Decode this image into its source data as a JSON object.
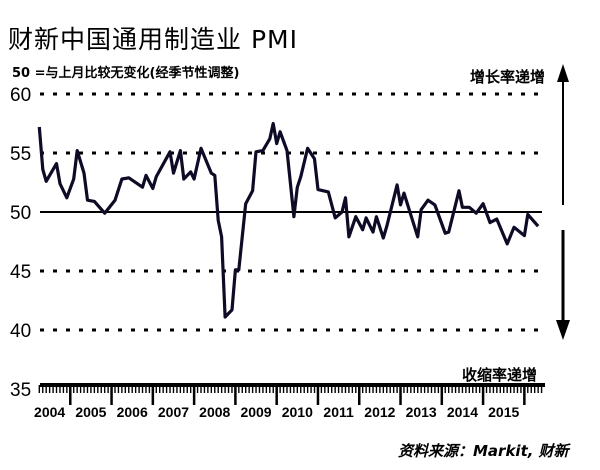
{
  "chart_data": {
    "type": "line",
    "title": "财新中国通用制造业 PMI",
    "subtitle": "50 =与上月比较无变化(经季节性调整)",
    "annotation_up": "增长率递增",
    "annotation_down": "收缩率递增",
    "source": "资料来源：Markit, 财新",
    "xlabel": "",
    "ylabel": "",
    "ylim": [
      35,
      60
    ],
    "yticks": [
      "35",
      "40",
      "45",
      "50",
      "55",
      "60"
    ],
    "xticks": [
      "2004",
      "2005",
      "2006",
      "2007",
      "2008",
      "2009",
      "2010",
      "2011",
      "2012",
      "2013",
      "2014",
      "2015"
    ],
    "x_unit": "months since Jan 2004",
    "reference_line": 50,
    "grid": "dashed horizontal",
    "series": [
      {
        "name": "PMI",
        "color": "#0d0b26",
        "points": [
          [
            3,
            57.2
          ],
          [
            4,
            53.6
          ],
          [
            5,
            52.6
          ],
          [
            8,
            54.1
          ],
          [
            9,
            52.4
          ],
          [
            11,
            51.2
          ],
          [
            13,
            52.8
          ],
          [
            14,
            55.2
          ],
          [
            16,
            53.3
          ],
          [
            17,
            51.0
          ],
          [
            19,
            50.9
          ],
          [
            22,
            49.9
          ],
          [
            25,
            51.0
          ],
          [
            27,
            52.8
          ],
          [
            29,
            52.9
          ],
          [
            33,
            52.1
          ],
          [
            34,
            53.1
          ],
          [
            36,
            52.0
          ],
          [
            37,
            53.0
          ],
          [
            41,
            55.1
          ],
          [
            42,
            53.3
          ],
          [
            44,
            55.2
          ],
          [
            45,
            52.8
          ],
          [
            47,
            53.4
          ],
          [
            48,
            52.8
          ],
          [
            50,
            55.4
          ],
          [
            53,
            53.3
          ],
          [
            54,
            53.1
          ],
          [
            55,
            49.3
          ],
          [
            56,
            47.9
          ],
          [
            57,
            41.1
          ],
          [
            59,
            41.7
          ],
          [
            60,
            45.1
          ],
          [
            61,
            45.1
          ],
          [
            63,
            50.7
          ],
          [
            65,
            51.8
          ],
          [
            66,
            55.1
          ],
          [
            68,
            55.2
          ],
          [
            70,
            56.2
          ],
          [
            71,
            57.5
          ],
          [
            72,
            55.8
          ],
          [
            73,
            56.8
          ],
          [
            75,
            55.2
          ],
          [
            77,
            49.6
          ],
          [
            78,
            52.1
          ],
          [
            79,
            53.0
          ],
          [
            81,
            55.4
          ],
          [
            83,
            54.5
          ],
          [
            84,
            51.9
          ],
          [
            87,
            51.7
          ],
          [
            89,
            49.5
          ],
          [
            91,
            50.0
          ],
          [
            92,
            51.2
          ],
          [
            93,
            47.9
          ],
          [
            95,
            49.6
          ],
          [
            97,
            48.5
          ],
          [
            98,
            49.5
          ],
          [
            100,
            48.3
          ],
          [
            101,
            49.6
          ],
          [
            103,
            47.8
          ],
          [
            104,
            48.8
          ],
          [
            107,
            52.3
          ],
          [
            108,
            50.6
          ],
          [
            109,
            51.6
          ],
          [
            113,
            47.9
          ],
          [
            114,
            50.2
          ],
          [
            116,
            51.0
          ],
          [
            118,
            50.6
          ],
          [
            121,
            48.2
          ],
          [
            122,
            48.3
          ],
          [
            125,
            51.8
          ],
          [
            126,
            50.4
          ],
          [
            128,
            50.4
          ],
          [
            130,
            49.9
          ],
          [
            132,
            50.7
          ],
          [
            134,
            49.1
          ],
          [
            136,
            49.4
          ],
          [
            139,
            47.3
          ],
          [
            141,
            48.7
          ],
          [
            144,
            48.0
          ],
          [
            145,
            49.8
          ],
          [
            148,
            48.8
          ]
        ]
      }
    ]
  }
}
